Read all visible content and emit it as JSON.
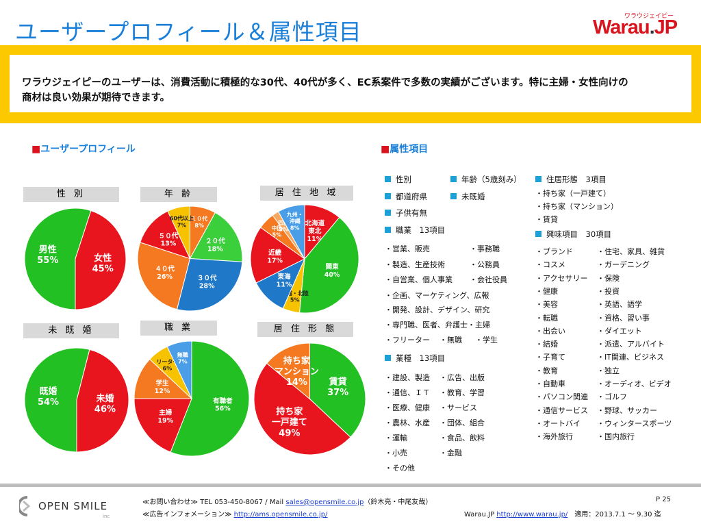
{
  "header": {
    "title": "ユーザープロフィール＆属性項目",
    "logo_sub": "ワラウジェイピー",
    "logo_main": "Warau",
    "logo_dot": ".",
    "logo_jp": "JP",
    "colors": {
      "title": "#1a7fd9",
      "brand": "#d9141e",
      "banner": "#fcc800"
    }
  },
  "banner": {
    "line1": "ワラウジェイピーのユーザーは、消費活動に積極的な30代、40代が多く、EC系案件で多数の実績がございます。特に主婦・女性向けの",
    "line2": "商材は良い効果が期待できます。"
  },
  "sections": {
    "profile": "ユーザープロフィール",
    "attributes": "属性項目",
    "marker": "■"
  },
  "charts": [
    {
      "title": "性 別",
      "slices": [
        {
          "label": "男性",
          "value": 55,
          "value_text": "55%",
          "color": "#22c022"
        },
        {
          "label": "女性",
          "value": 45,
          "value_text": "45%",
          "color": "#e8141e"
        }
      ]
    },
    {
      "title": "年 齢",
      "slices": [
        {
          "label": "１０代",
          "value": 8,
          "value_text": "8%",
          "color": "#f47920"
        },
        {
          "label": "２０代",
          "value": 18,
          "value_text": "18%",
          "color": "#3ccf3c"
        },
        {
          "label": "３０代",
          "value": 28,
          "value_text": "28%",
          "color": "#1f78c8"
        },
        {
          "label": "４０代",
          "value": 26,
          "value_text": "26%",
          "color": "#f47920"
        },
        {
          "label": "５０代",
          "value": 13,
          "value_text": "13%",
          "color": "#e8141e"
        },
        {
          "label": "60代以上",
          "value": 7,
          "value_text": "7%",
          "color": "#f7c300"
        }
      ]
    },
    {
      "title": "居 住 地 域",
      "slices": [
        {
          "label": "北海道\n東北",
          "value": 11,
          "value_text": "11%",
          "color": "#e8141e"
        },
        {
          "label": "関東",
          "value": 40,
          "value_text": "40%",
          "color": "#22c022"
        },
        {
          "label": "信越・北陸",
          "value": 5,
          "value_text": "5%",
          "color": "#f7c300"
        },
        {
          "label": "東海",
          "value": 11,
          "value_text": "11%",
          "color": "#1f78c8"
        },
        {
          "label": "近畿",
          "value": 17,
          "value_text": "17%",
          "color": "#e8141e"
        },
        {
          "label": "中国",
          "value": 5,
          "value_text": "5%",
          "color": "#f47920"
        },
        {
          "label": "四国",
          "value": 2,
          "value_text": "2%",
          "color": "#f5a860"
        },
        {
          "label": "九州・\n沖縄",
          "value": 8,
          "value_text": "8%",
          "color": "#4a9ee8"
        }
      ]
    },
    {
      "title": "未 既 婚",
      "slices": [
        {
          "label": "既婚",
          "value": 54,
          "value_text": "54%",
          "color": "#22c022"
        },
        {
          "label": "未婚",
          "value": 46,
          "value_text": "46%",
          "color": "#e8141e"
        }
      ]
    },
    {
      "title": "職 業",
      "slices": [
        {
          "label": "有職者",
          "value": 56,
          "value_text": "56%",
          "color": "#22c022"
        },
        {
          "label": "主婦",
          "value": 19,
          "value_text": "19%",
          "color": "#e8141e"
        },
        {
          "label": "学生",
          "value": 12,
          "value_text": "12%",
          "color": "#f47920"
        },
        {
          "label": "リーター",
          "value": 6,
          "value_text": "6%",
          "color": "#f7c300"
        },
        {
          "label": "無職",
          "value": 7,
          "value_text": "7%",
          "color": "#4a9ee8"
        }
      ]
    },
    {
      "title": "居 住 形 態",
      "slices": [
        {
          "label": "賃貸",
          "value": 37,
          "value_text": "37%",
          "color": "#22c022"
        },
        {
          "label": "持ち家\n一戸建て",
          "value": 49,
          "value_text": "49%",
          "color": "#e8141e"
        },
        {
          "label": "持ち家\nマンション",
          "value": 14,
          "value_text": "14%",
          "color": "#f47920"
        }
      ]
    }
  ],
  "attributes": {
    "gender": "性別",
    "age": "年齢（5歳刻み）",
    "prefecture": "都道府県",
    "marital": "未既婚",
    "children": "子供有無",
    "occupation": "職業　13項目",
    "occupation_items": [
      "・営業、販売",
      "・事務職",
      "・製造、生産技術",
      "・公務員",
      "・自営業、個人事業",
      "・会社役員",
      "・企画、マーケティング、広報",
      "・開発、設計、デザイン、研究",
      "・専門職、医者、弁護士・主婦",
      "・フリーター",
      "・無職",
      "・学生"
    ],
    "industry": "業種　13項目",
    "industry_items": [
      "・建設、製造",
      "・広告、出版",
      "・通信、ＩＴ",
      "・教育、学習",
      "・医療、健康",
      "・サービス",
      "・農林、水産",
      "・団体、組合",
      "・運輸",
      "・食品、飲料",
      "・小売",
      "・金融",
      "・その他"
    ],
    "housing": "住居形態　3項目",
    "housing_items": [
      "・持ち家（一戸建て）",
      "・持ち家（マンション）",
      "・賃貸"
    ],
    "interest": "興味項目　30項目",
    "interest_col1": [
      "・ブランド",
      "・コスメ",
      "・アクセサリー",
      "・健康",
      "・美容",
      "・転職",
      "・出会い",
      "・結婚",
      "・子育て",
      "・教育",
      "・自動車",
      "・パソコン関連",
      "・通信サービス",
      "・オートバイ",
      "・海外旅行"
    ],
    "interest_col2": [
      "・住宅、家具、雑貨",
      "・ガーデニング",
      "・保険",
      "・投資",
      "・英語、語学",
      "・資格、習い事",
      "・ダイエット",
      "・派遣、アルバイト",
      "・IT関連、ビジネス",
      "・独立",
      "・オーディオ、ビデオ",
      "・ゴルフ",
      "・野球、サッカー",
      "・ウィンタースポーツ",
      "・国内旅行"
    ]
  },
  "footer": {
    "company": "OPEN SMILE",
    "company_inc": "inc",
    "contact_prefix": "≪お問い合わせ≫ TEL 053-450-8067 / Mail ",
    "contact_mail": "sales@opensmile.co.jp",
    "contact_suffix": "（鈴木亮・中尾友哉）",
    "ad_prefix": "≪広告インフォメーション≫ ",
    "ad_url": "http://ams.opensmile.co.jp/",
    "page": "P 25",
    "site_prefix": "Warau.JP ",
    "site_url": "http://www.warau.jp/",
    "period": "　適用：2013.7.1 〜 9.30 迄"
  }
}
